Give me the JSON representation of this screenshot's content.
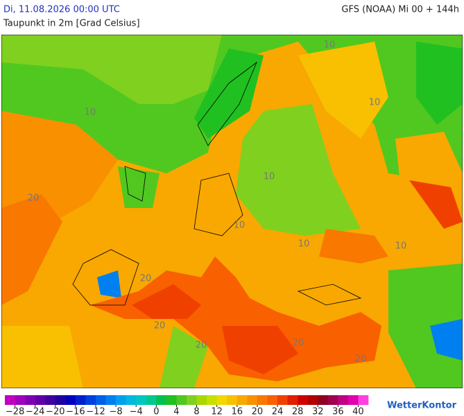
{
  "header": {
    "date": "Di, 11.08.2026 00:00 UTC",
    "model": "GFS (NOAA) Mi 00 + 144h",
    "subtitle": "Taupunkt in 2m [Grad Celsius]"
  },
  "map": {
    "contour_labels": [
      10,
      10,
      10,
      10,
      10,
      10,
      10,
      20,
      20,
      20,
      20,
      20,
      20
    ]
  },
  "legend": {
    "xlim": [
      -30,
      42
    ],
    "ticks": [
      {
        "value": -28,
        "label": "−28"
      },
      {
        "value": -24,
        "label": "−24"
      },
      {
        "value": -20,
        "label": "−20"
      },
      {
        "value": -16,
        "label": "−16"
      },
      {
        "value": -12,
        "label": "−12"
      },
      {
        "value": -8,
        "label": "−8"
      },
      {
        "value": -4,
        "label": "−4"
      },
      0,
      4,
      8,
      12,
      16,
      20,
      24,
      28,
      32,
      36,
      40
    ],
    "colors": [
      "#c000c0",
      "#a000c0",
      "#8000b0",
      "#6000a8",
      "#4000a0",
      "#2000a0",
      "#0000c0",
      "#0020d0",
      "#0040e0",
      "#0060e8",
      "#0080f0",
      "#00a0f0",
      "#00b8e0",
      "#00c8c0",
      "#00c890",
      "#00c050",
      "#20c020",
      "#50c820",
      "#80d020",
      "#a8d800",
      "#c8e000",
      "#f0d800",
      "#f8c000",
      "#f8a800",
      "#f89000",
      "#f87800",
      "#f86000",
      "#f04000",
      "#e02000",
      "#d00000",
      "#b00000",
      "#900020",
      "#a00050",
      "#c00080",
      "#e000b0",
      "#ff40e0"
    ]
  },
  "brand": "WetterKontor"
}
